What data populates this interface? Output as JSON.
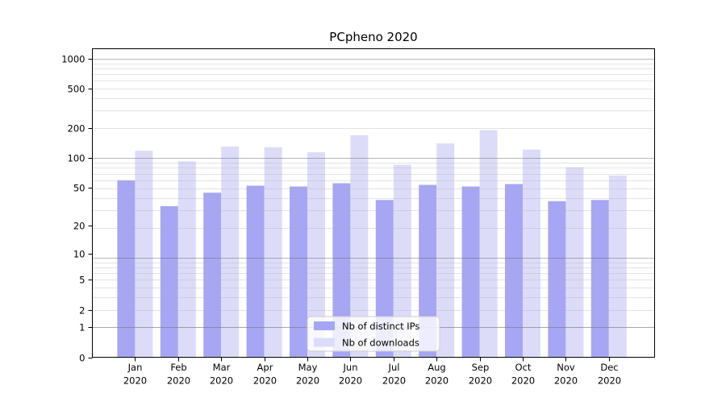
{
  "figure": {
    "title": "PCpheno 2020"
  },
  "chart_data": {
    "type": "bar",
    "title": "PCpheno 2020",
    "categories": [
      "Jan",
      "Feb",
      "Mar",
      "Apr",
      "May",
      "Jun",
      "Jul",
      "Aug",
      "Sep",
      "Oct",
      "Nov",
      "Dec"
    ],
    "category_year": "2020",
    "series": [
      {
        "name": "Nb of distinct IPs",
        "color": "#a6a6f4",
        "values": [
          59,
          32,
          44,
          52,
          51,
          55,
          37,
          53,
          51,
          54,
          36,
          37
        ]
      },
      {
        "name": "Nb of downloads",
        "color": "#dcdcf9",
        "values": [
          118,
          92,
          130,
          128,
          114,
          169,
          85,
          140,
          190,
          121,
          80,
          66
        ]
      }
    ],
    "yscale": "log1p",
    "yticks": [
      0,
      1,
      2,
      5,
      10,
      20,
      50,
      100,
      200,
      500,
      1000
    ],
    "ytick_labels": [
      "0",
      "1",
      "2",
      "5",
      "10",
      "20",
      "50",
      "100",
      "200",
      "500",
      "1000"
    ],
    "ylim": [
      0,
      1260
    ],
    "xlabel": "",
    "ylabel": "",
    "grid": true,
    "legend": {
      "position": "lower-center",
      "entries": [
        "Nb of distinct IPs",
        "Nb of downloads"
      ]
    },
    "colors": {
      "axis": "#000000",
      "grid_major": "#b5b5b5",
      "grid_minor": "#e6e6e6",
      "background": "#ffffff",
      "legend_border": "#cccccc",
      "legend_bg": "#ffffff"
    }
  }
}
